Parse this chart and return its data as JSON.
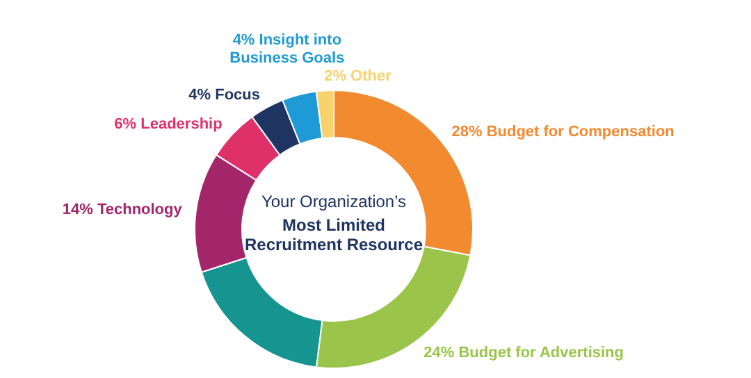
{
  "chart_data": {
    "type": "donut",
    "title": "Your Organization’s",
    "subtitle": "Most Limited Recruitment Resource",
    "categories": [
      "28% Budget for Compensation",
      "24% Budget for Advertising",
      null,
      "14% Technology",
      "6% Leadership",
      "4% Focus",
      "4% Insight into Business Goals",
      "2% Other"
    ],
    "values": [
      28,
      24,
      18,
      14,
      6,
      4,
      4,
      2
    ],
    "colors": [
      "#f28a30",
      "#9bc44a",
      "#159490",
      "#a3266b",
      "#e0306a",
      "#1f3461",
      "#1e9ad6",
      "#f8d26c"
    ]
  }
}
